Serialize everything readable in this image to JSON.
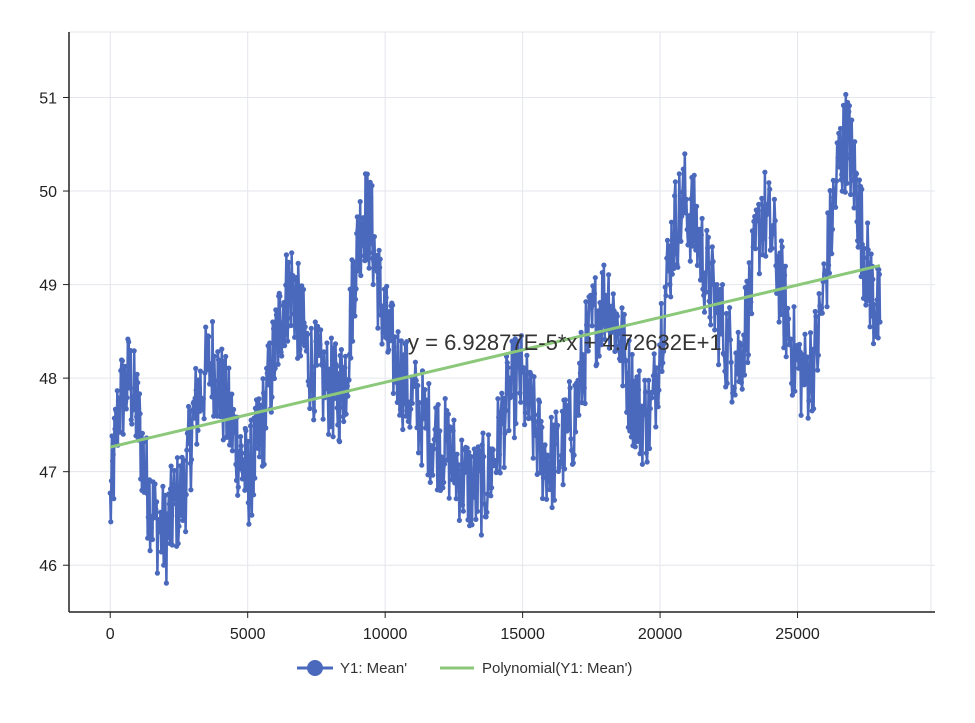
{
  "chart_data": {
    "type": "line",
    "title": "",
    "xlabel": "",
    "ylabel": "",
    "xlim": [
      -1500,
      30000
    ],
    "ylim": [
      45.5,
      51.7
    ],
    "x_ticks": [
      0,
      5000,
      10000,
      15000,
      20000,
      25000
    ],
    "y_ticks": [
      46,
      47,
      48,
      49,
      50,
      51
    ],
    "grid": true,
    "legend_position": "bottom",
    "series": [
      {
        "name": "Y1: Mean'",
        "style": "line-with-markers",
        "color": "#4a69bd",
        "points": [
          [
            0,
            46.6
          ],
          [
            300,
            47.7
          ],
          [
            700,
            48.0
          ],
          [
            1000,
            47.6
          ],
          [
            1300,
            46.9
          ],
          [
            1600,
            46.5
          ],
          [
            2000,
            46.3
          ],
          [
            2300,
            46.6
          ],
          [
            2700,
            46.8
          ],
          [
            3000,
            47.5
          ],
          [
            3300,
            47.9
          ],
          [
            3700,
            48.2
          ],
          [
            4000,
            47.9
          ],
          [
            4400,
            47.5
          ],
          [
            4700,
            47.2
          ],
          [
            5000,
            46.9
          ],
          [
            5300,
            47.2
          ],
          [
            5600,
            47.6
          ],
          [
            6000,
            48.3
          ],
          [
            6300,
            48.8
          ],
          [
            6600,
            49.0
          ],
          [
            6900,
            48.6
          ],
          [
            7200,
            48.2
          ],
          [
            7600,
            48.0
          ],
          [
            8000,
            47.9
          ],
          [
            8300,
            47.8
          ],
          [
            8600,
            48.1
          ],
          [
            8900,
            49.2
          ],
          [
            9200,
            49.8
          ],
          [
            9500,
            49.6
          ],
          [
            9800,
            48.9
          ],
          [
            10100,
            48.4
          ],
          [
            10500,
            48.1
          ],
          [
            10900,
            47.8
          ],
          [
            11300,
            47.6
          ],
          [
            11700,
            47.4
          ],
          [
            12100,
            47.3
          ],
          [
            12500,
            47.1
          ],
          [
            12900,
            46.9
          ],
          [
            13300,
            46.8
          ],
          [
            13700,
            46.9
          ],
          [
            14100,
            47.3
          ],
          [
            14500,
            47.8
          ],
          [
            14900,
            48.0
          ],
          [
            15300,
            47.6
          ],
          [
            15700,
            47.2
          ],
          [
            16100,
            47.1
          ],
          [
            16500,
            47.3
          ],
          [
            16900,
            47.6
          ],
          [
            17300,
            48.3
          ],
          [
            17700,
            48.7
          ],
          [
            18100,
            48.9
          ],
          [
            18500,
            48.5
          ],
          [
            18900,
            47.9
          ],
          [
            19300,
            47.6
          ],
          [
            19700,
            47.6
          ],
          [
            20100,
            48.7
          ],
          [
            20500,
            49.6
          ],
          [
            20900,
            49.9
          ],
          [
            21300,
            49.6
          ],
          [
            21700,
            49.1
          ],
          [
            22100,
            48.7
          ],
          [
            22500,
            48.3
          ],
          [
            22900,
            48.2
          ],
          [
            23300,
            48.9
          ],
          [
            23700,
            49.8
          ],
          [
            24100,
            49.5
          ],
          [
            24500,
            48.8
          ],
          [
            24900,
            48.2
          ],
          [
            25300,
            48.0
          ],
          [
            25700,
            48.3
          ],
          [
            26100,
            49.3
          ],
          [
            26500,
            50.3
          ],
          [
            26800,
            50.6
          ],
          [
            27100,
            50.1
          ],
          [
            27400,
            49.4
          ],
          [
            27700,
            48.9
          ],
          [
            28000,
            48.6
          ]
        ]
      },
      {
        "name": "Polynomial(Y1: Mean')",
        "style": "line",
        "color": "#8bc87a",
        "points": [
          [
            0,
            47.2632
          ],
          [
            28000,
            49.203
          ]
        ]
      }
    ],
    "annotation": "y = 6.92877E-5*x + 4.72632E+1"
  }
}
